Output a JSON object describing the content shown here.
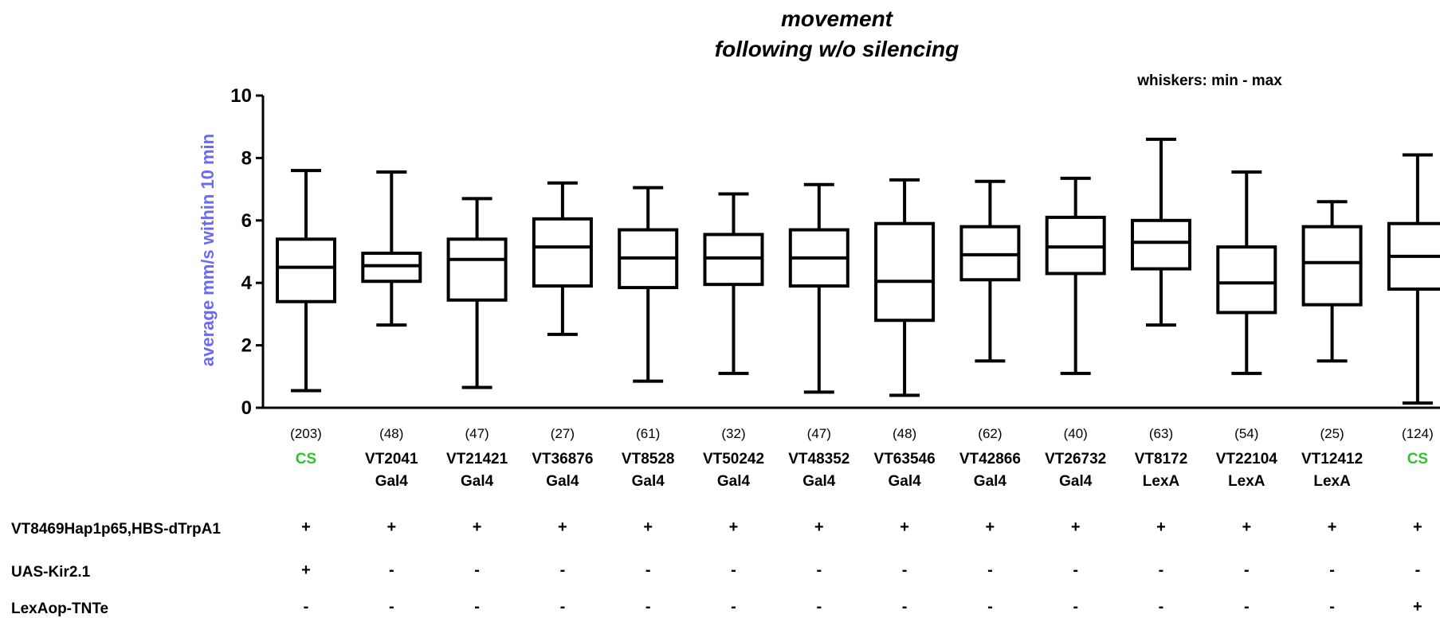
{
  "chart_data": {
    "type": "boxplot",
    "title_line1": "movement",
    "title_line2": "following w/o silencing",
    "note": "whiskers: min - max",
    "ylabel": "average mm/s within 10 min",
    "ylim": [
      0,
      10
    ],
    "yticks": [
      "0",
      "2",
      "4",
      "6",
      "8",
      "10"
    ],
    "categories": [
      {
        "n": "(203)",
        "line1": "CS",
        "line2": "",
        "control": true,
        "min": 0.55,
        "q1": 3.4,
        "median": 4.5,
        "q3": 5.4,
        "max": 7.6
      },
      {
        "n": "(48)",
        "line1": "VT2041",
        "line2": "Gal4",
        "control": false,
        "min": 2.65,
        "q1": 4.05,
        "median": 4.55,
        "q3": 4.95,
        "max": 7.55
      },
      {
        "n": "(47)",
        "line1": "VT21421",
        "line2": "Gal4",
        "control": false,
        "min": 0.65,
        "q1": 3.45,
        "median": 4.75,
        "q3": 5.4,
        "max": 6.7
      },
      {
        "n": "(27)",
        "line1": "VT36876",
        "line2": "Gal4",
        "control": false,
        "min": 2.35,
        "q1": 3.9,
        "median": 5.15,
        "q3": 6.05,
        "max": 7.2
      },
      {
        "n": "(61)",
        "line1": "VT8528",
        "line2": "Gal4",
        "control": false,
        "min": 0.85,
        "q1": 3.85,
        "median": 4.8,
        "q3": 5.7,
        "max": 7.05
      },
      {
        "n": "(32)",
        "line1": "VT50242",
        "line2": "Gal4",
        "control": false,
        "min": 1.1,
        "q1": 3.95,
        "median": 4.8,
        "q3": 5.55,
        "max": 6.85
      },
      {
        "n": "(47)",
        "line1": "VT48352",
        "line2": "Gal4",
        "control": false,
        "min": 0.5,
        "q1": 3.9,
        "median": 4.8,
        "q3": 5.7,
        "max": 7.15
      },
      {
        "n": "(48)",
        "line1": "VT63546",
        "line2": "Gal4",
        "control": false,
        "min": 0.4,
        "q1": 2.8,
        "median": 4.05,
        "q3": 5.9,
        "max": 7.3
      },
      {
        "n": "(62)",
        "line1": "VT42866",
        "line2": "Gal4",
        "control": false,
        "min": 1.5,
        "q1": 4.1,
        "median": 4.9,
        "q3": 5.8,
        "max": 7.25
      },
      {
        "n": "(40)",
        "line1": "VT26732",
        "line2": "Gal4",
        "control": false,
        "min": 1.1,
        "q1": 4.3,
        "median": 5.15,
        "q3": 6.1,
        "max": 7.35
      },
      {
        "n": "(63)",
        "line1": "VT8172",
        "line2": "LexA",
        "control": false,
        "min": 2.65,
        "q1": 4.45,
        "median": 5.3,
        "q3": 6.0,
        "max": 8.6
      },
      {
        "n": "(54)",
        "line1": "VT22104",
        "line2": "LexA",
        "control": false,
        "min": 1.1,
        "q1": 3.05,
        "median": 4.0,
        "q3": 5.15,
        "max": 7.55
      },
      {
        "n": "(25)",
        "line1": "VT12412",
        "line2": "LexA",
        "control": false,
        "min": 1.5,
        "q1": 3.3,
        "median": 4.65,
        "q3": 5.8,
        "max": 6.6
      },
      {
        "n": "(124)",
        "line1": "CS",
        "line2": "",
        "control": true,
        "min": 0.15,
        "q1": 3.8,
        "median": 4.85,
        "q3": 5.9,
        "max": 8.1
      }
    ],
    "genotype_rows": [
      {
        "label": "VT8469Hap1p65,HBS-dTrpA1",
        "marks": [
          "+",
          "+",
          "+",
          "+",
          "+",
          "+",
          "+",
          "+",
          "+",
          "+",
          "+",
          "+",
          "+",
          "+"
        ]
      },
      {
        "label": "UAS-Kir2.1",
        "marks": [
          "+",
          "-",
          "-",
          "-",
          "-",
          "-",
          "-",
          "-",
          "-",
          "-",
          "-",
          "-",
          "-",
          "-"
        ]
      },
      {
        "label": "LexAop-TNTe",
        "marks": [
          "-",
          "-",
          "-",
          "-",
          "-",
          "-",
          "-",
          "-",
          "-",
          "-",
          "-",
          "-",
          "-",
          "+"
        ]
      }
    ],
    "colors": {
      "control_label": "#2fc42f",
      "ylabel": "#6b6bf0",
      "box": "#000000"
    }
  }
}
